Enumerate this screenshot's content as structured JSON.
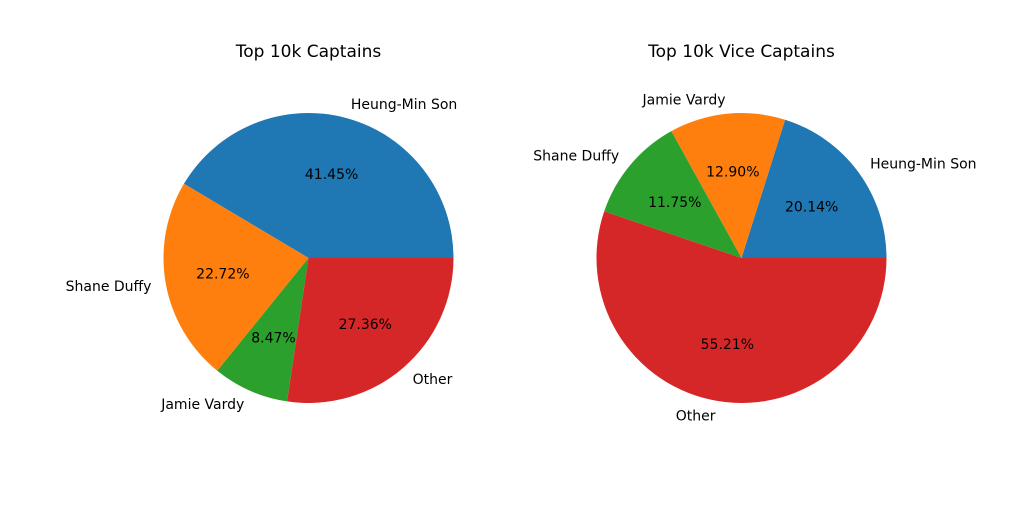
{
  "colors": {
    "blue": "#1f77b4",
    "orange": "#ff7f0e",
    "green": "#2ca02c",
    "red": "#d62728"
  },
  "chart_data": [
    {
      "type": "pie",
      "title": "Top 10k Captains",
      "slices": [
        {
          "label": "Heung-Min Son",
          "value": 41.45,
          "pct_text": "41.45%",
          "color": "#1f77b4"
        },
        {
          "label": "Shane Duffy",
          "value": 22.72,
          "pct_text": "22.72%",
          "color": "#ff7f0e"
        },
        {
          "label": "Jamie Vardy",
          "value": 8.47,
          "pct_text": "8.47%",
          "color": "#2ca02c"
        },
        {
          "label": "Other",
          "value": 27.36,
          "pct_text": "27.36%",
          "color": "#d62728"
        }
      ]
    },
    {
      "type": "pie",
      "title": "Top 10k Vice Captains",
      "slices": [
        {
          "label": "Heung-Min Son",
          "value": 20.14,
          "pct_text": "20.14%",
          "color": "#1f77b4"
        },
        {
          "label": "Jamie Vardy",
          "value": 12.9,
          "pct_text": "12.90%",
          "color": "#ff7f0e"
        },
        {
          "label": "Shane Duffy",
          "value": 11.75,
          "pct_text": "11.75%",
          "color": "#2ca02c"
        },
        {
          "label": "Other",
          "value": 55.21,
          "pct_text": "55.21%",
          "color": "#d62728"
        }
      ]
    }
  ]
}
